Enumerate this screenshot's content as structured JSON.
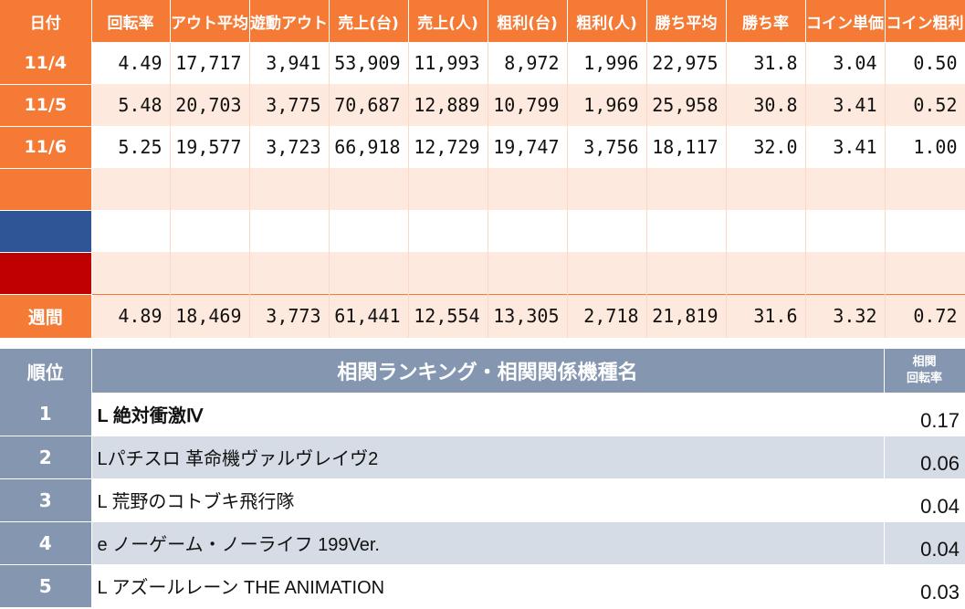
{
  "stats": {
    "headers": [
      "日付",
      "回転率",
      "アウト平均",
      "遊動アウト",
      "売上(台)",
      "売上(人)",
      "粗利(台)",
      "粗利(人)",
      "勝ち平均",
      "勝ち率",
      "コイン単価",
      "コイン粗利"
    ],
    "rows": [
      {
        "date": "11/4",
        "values": [
          "4.49",
          "17,717",
          "3,941",
          "53,909",
          "11,993",
          "8,972",
          "1,996",
          "22,975",
          "31.8",
          "3.04",
          "0.50"
        ]
      },
      {
        "date": "11/5",
        "values": [
          "5.48",
          "20,703",
          "3,775",
          "70,687",
          "12,889",
          "10,799",
          "1,969",
          "25,958",
          "30.8",
          "3.41",
          "0.52"
        ]
      },
      {
        "date": "11/6",
        "values": [
          "5.25",
          "19,577",
          "3,723",
          "66,918",
          "12,729",
          "19,747",
          "3,756",
          "18,117",
          "32.0",
          "3.41",
          "1.00"
        ]
      },
      {
        "date": "",
        "values": [
          "",
          "",
          "",
          "",
          "",
          "",
          "",
          "",
          "",
          "",
          ""
        ]
      },
      {
        "date": "",
        "values": [
          "",
          "",
          "",
          "",
          "",
          "",
          "",
          "",
          "",
          "",
          ""
        ]
      },
      {
        "date": "",
        "values": [
          "",
          "",
          "",
          "",
          "",
          "",
          "",
          "",
          "",
          "",
          ""
        ]
      }
    ],
    "week": {
      "label": "週間",
      "values": [
        "4.89",
        "18,469",
        "3,773",
        "61,441",
        "12,554",
        "13,305",
        "2,718",
        "21,819",
        "31.6",
        "3.32",
        "0.72"
      ]
    }
  },
  "ranking": {
    "header_rank": "順位",
    "header_name": "相関ランキング・相関関係機種名",
    "header_corr_line1": "相関",
    "header_corr_line2": "回転率",
    "rows": [
      {
        "rank": "1",
        "name": "L 絶対衝激Ⅳ",
        "corr": "0.17"
      },
      {
        "rank": "2",
        "name": "Lパチスロ 革命機ヴァルヴレイヴ2",
        "corr": "0.06"
      },
      {
        "rank": "3",
        "name": "L 荒野のコトブキ飛行隊",
        "corr": "0.04"
      },
      {
        "rank": "4",
        "name": "e ノーゲーム・ノーライフ 199Ver.",
        "corr": "0.04"
      },
      {
        "rank": "5",
        "name": "L アズールレーン THE ANIMATION",
        "corr": "0.03"
      }
    ]
  },
  "colors": {
    "orange": "#f47a35",
    "pink": "#fde9dd",
    "blue": "#2f5597",
    "red": "#c00000",
    "slate": "#8496b0",
    "gray_row": "#d6dce5"
  }
}
